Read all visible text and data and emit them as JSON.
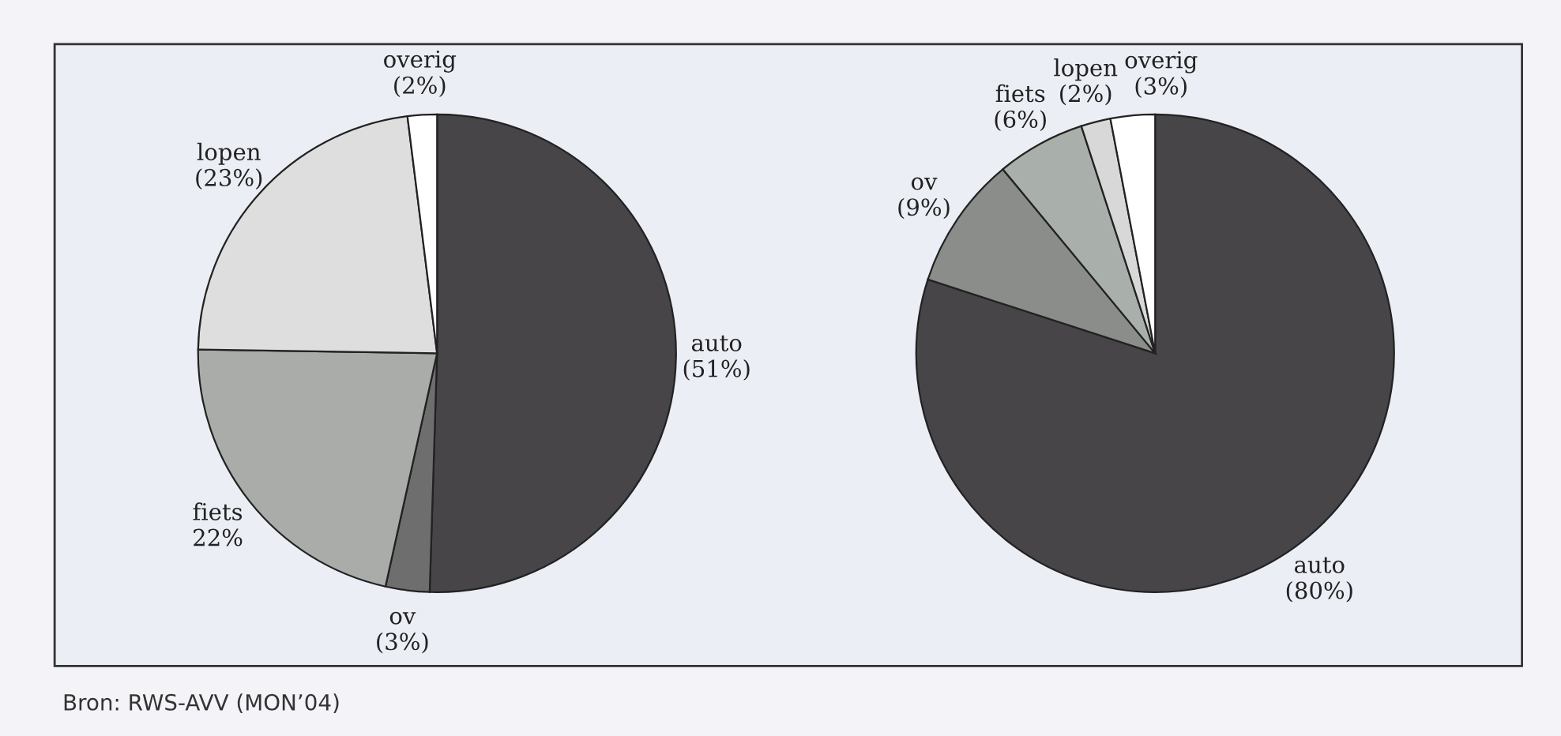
{
  "chart_data": [
    {
      "type": "pie",
      "categories": [
        "auto",
        "ov",
        "fiets",
        "lopen",
        "overig"
      ],
      "values": [
        51,
        3,
        22,
        23,
        2
      ],
      "value_labels": [
        "(51%)",
        "(3%)",
        "22%",
        "(23%)",
        "(2%)"
      ],
      "colors": [
        "#474548",
        "#6e6e6e",
        "#a9aca9",
        "#dedede",
        "#ffffff"
      ],
      "annotations": [
        "Bron: RWS-AVV (MON’04)"
      ]
    },
    {
      "type": "pie",
      "categories": [
        "auto",
        "ov",
        "fiets",
        "lopen",
        "overig"
      ],
      "values": [
        80,
        9,
        6,
        2,
        3
      ],
      "value_labels": [
        "(80%)",
        "(9%)",
        "(6%)",
        "(2%)",
        "(3%)"
      ],
      "colors": [
        "#474548",
        "#8a8d8a",
        "#a9b0ab",
        "#d8d8d8",
        "#ffffff"
      ]
    }
  ]
}
